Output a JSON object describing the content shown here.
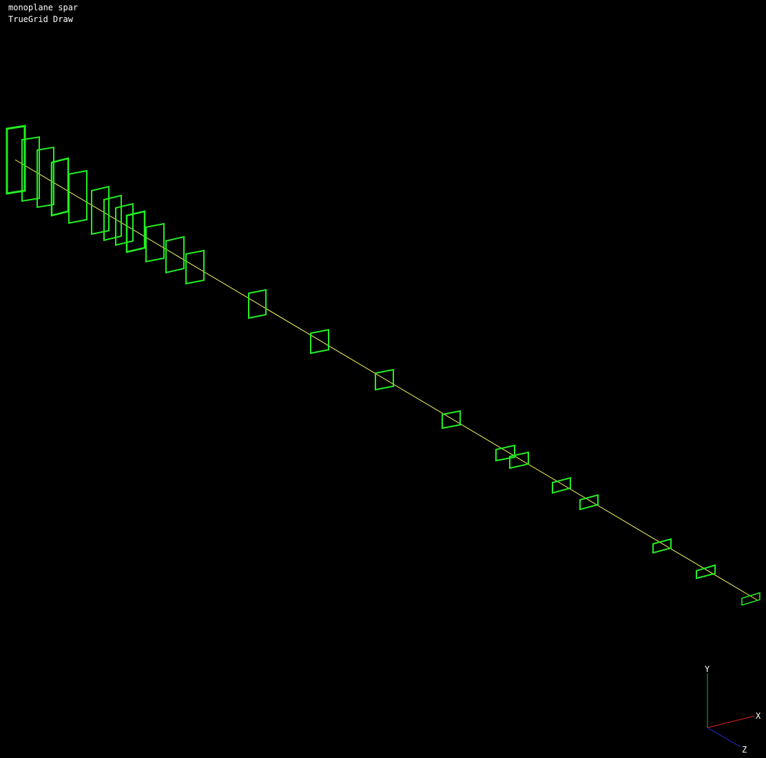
{
  "header": {
    "title": "monoplane spar",
    "subtitle": "TrueGrid Draw"
  },
  "colors": {
    "background": "#000000",
    "spar_line": "#ffff66",
    "rib_outline": "#22ee22",
    "text": "#ffffff",
    "axis_x": "#dd2222",
    "axis_y": "#22bb22",
    "axis_z": "#2233dd"
  },
  "triad": {
    "x_label": "X",
    "y_label": "Y",
    "z_label": "Z"
  },
  "rib_count": 24
}
